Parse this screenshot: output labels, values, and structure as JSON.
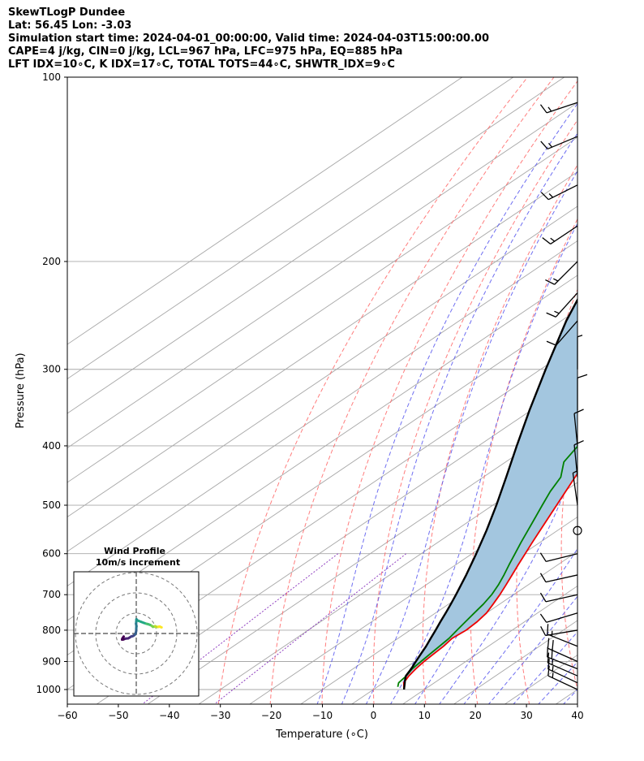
{
  "header": {
    "line1": "SkewTLogP Dundee",
    "line2": "Lat: 56.45   Lon: -3.03",
    "line3": "Simulation start time: 2024-04-01_00:00:00, Valid time: 2024-04-03T15:00:00.00",
    "line4": "CAPE=4 j/kg, CIN=0 j/kg, LCL=967 hPa, LFC=975 hPa, EQ=885 hPa",
    "line5": "LFT IDX=10∘C, K IDX=17∘C, TOTAL TOTS=44∘C, SHWTR_IDX=9∘C"
  },
  "chart_data": {
    "type": "line",
    "title": "SkewTLogP Dundee",
    "xlabel": "Temperature (∘C)",
    "ylabel": "Pressure (hPa)",
    "xlim": [
      -60,
      40
    ],
    "ylim": [
      1050,
      100
    ],
    "y_scale": "log",
    "grid": true,
    "x_ticks": [
      -60,
      -50,
      -40,
      -30,
      -20,
      -10,
      0,
      10,
      20,
      30,
      40
    ],
    "x_tick_labels": [
      "−60",
      "−50",
      "−40",
      "−30",
      "−20",
      "−10",
      "0",
      "10",
      "20",
      "30",
      "40"
    ],
    "y_ticks": [
      1000,
      900,
      800,
      700,
      600,
      500,
      400,
      300,
      200,
      100
    ],
    "y_tick_labels": [
      "1000",
      "900",
      "800",
      "700",
      "600",
      "500",
      "400",
      "300",
      "200",
      "100"
    ],
    "series": [
      {
        "color": "#ee0000",
        "pressure": [
          1000,
          975,
          950,
          925,
          900,
          875,
          850,
          825,
          800,
          775,
          750,
          725,
          700,
          675,
          650,
          625,
          600,
          575,
          550,
          525,
          500,
          475,
          450,
          425,
          400,
          375,
          350,
          325,
          310,
          300,
          290,
          280,
          270,
          260,
          250,
          240,
          230,
          220,
          210,
          200,
          190,
          180,
          170,
          160,
          150,
          140,
          130,
          125,
          120,
          115,
          110,
          105,
          100
        ],
        "temperature": [
          6.0,
          4.0,
          3.0,
          2.3,
          1.8,
          1.5,
          1.2,
          0.6,
          1.0,
          0.7,
          0.0,
          -1.3,
          -2.7,
          -4.3,
          -6.0,
          -7.8,
          -9.6,
          -11.5,
          -13.4,
          -15.4,
          -17.5,
          -19.7,
          -22.0,
          -24.3,
          -26.9,
          -30.0,
          -33.6,
          -37.4,
          -40.2,
          -41.5,
          -41.2,
          -40.6,
          -39.9,
          -39.6,
          -39.2,
          -38.6,
          -38.0,
          -37.5,
          -37.0,
          -36.8,
          -37.4,
          -38.7,
          -40.1,
          -41.7,
          -42.5,
          -44.3,
          -45.9,
          -46.2,
          -47.0,
          -49.8,
          -51.6,
          -52.6,
          -53.1
        ]
      },
      {
        "color": "#008000",
        "pressure": [
          990,
          975,
          950,
          925,
          900,
          875,
          850,
          825,
          800,
          775,
          750,
          725,
          700,
          675,
          650,
          625,
          600,
          575,
          550,
          525,
          500,
          475,
          450,
          425,
          400,
          375,
          350,
          325,
          310,
          300,
          290,
          280,
          270,
          260,
          250,
          240,
          230,
          220,
          210,
          200,
          190,
          180,
          170,
          160,
          150,
          140,
          130,
          120,
          110,
          100
        ],
        "temperature": [
          4.0,
          3.0,
          2.5,
          1.6,
          1.2,
          0.8,
          0.4,
          0.0,
          -0.8,
          -1.6,
          -2.4,
          -3.2,
          -4.3,
          -5.8,
          -7.6,
          -9.6,
          -11.6,
          -13.7,
          -15.8,
          -18.0,
          -20.3,
          -22.7,
          -24.8,
          -28.6,
          -30.5,
          -35.0,
          -38.5,
          -43.8,
          -46.2,
          -48.5,
          -49.0,
          -49.3,
          -50.5,
          -52.5,
          -55.0,
          -59.0,
          -61.0,
          -64.5,
          -67.0,
          -69.8,
          -70.5,
          -70.0,
          -69.0,
          -68.0,
          -67.0,
          -65.5,
          -64.0,
          -62.0,
          -59.5,
          -57.0
        ]
      },
      {
        "color": "#000000",
        "pressure": [
          1000,
          975,
          967,
          950,
          925,
          900,
          875,
          850,
          825,
          800,
          775,
          750,
          725,
          700,
          650,
          600,
          550,
          500,
          450,
          400,
          350,
          300,
          250,
          200,
          175,
          150,
          125,
          100
        ],
        "temperature": [
          6.0,
          4.2,
          3.6,
          2.4,
          1.4,
          0.2,
          -1.0,
          -2.2,
          -3.6,
          -5.0,
          -6.5,
          -8.0,
          -9.6,
          -11.3,
          -15.0,
          -19.2,
          -23.9,
          -29.3,
          -35.5,
          -42.5,
          -50.3,
          -59.0,
          -69.0,
          -80.0,
          -86.5,
          -93.5,
          -101.0,
          -109.5
        ]
      }
    ],
    "wind_barbs": {
      "pressure": [
        1000,
        975,
        950,
        925,
        900,
        850,
        800,
        750,
        700,
        650,
        600,
        550,
        500,
        450,
        400,
        350,
        300,
        250,
        225,
        200,
        175,
        150,
        125,
        110
      ],
      "u_knots": [
        -15,
        -15,
        -16,
        -18,
        -18,
        -15,
        -12,
        -10,
        -9,
        -9,
        -8,
        -1,
        -1,
        -1,
        -1,
        0,
        0,
        -7,
        -9,
        -10,
        -12,
        -12,
        -12,
        -12
      ],
      "v_knots": [
        7,
        7,
        7,
        7,
        8,
        6,
        -2,
        -3,
        -2,
        -2,
        -2,
        0,
        7,
        10,
        10,
        10,
        6,
        -8,
        -10,
        -10,
        -8,
        -6,
        -5,
        -4
      ]
    }
  },
  "hodograph": {
    "title": "Wind Profile",
    "subtitle": "10m/s increment",
    "rings_ms": [
      10,
      20,
      30
    ],
    "u_ms": [
      -6.2,
      -6.8,
      -7.0,
      -6.3,
      -5.2,
      -4.0,
      -3.3,
      -2.5,
      -1.8,
      -1.2,
      -0.6,
      -0.2,
      0.0,
      0.0,
      0.1,
      -0.1,
      0.0,
      0.1,
      0.5,
      1.2,
      2.5,
      3.8,
      5.0,
      6.1,
      6.9,
      7.6,
      8.2,
      8.8,
      9.3,
      9.8,
      10.4,
      11.0,
      11.6,
      12.0,
      12.5
    ],
    "v_ms": [
      -1.5,
      -2.4,
      -3.0,
      -2.9,
      -2.5,
      -2.4,
      -2.0,
      -1.5,
      -1.3,
      -1.0,
      -0.5,
      0.4,
      1.5,
      2.5,
      3.6,
      4.8,
      5.8,
      7.0,
      6.5,
      6.2,
      5.7,
      5.2,
      4.8,
      4.5,
      4.2,
      3.8,
      3.3,
      3.4,
      3.6,
      3.3,
      3.2,
      3.3,
      3.4,
      3.2,
      3.0
    ]
  },
  "colors": {
    "temperature": "#ee0000",
    "dewpoint": "#008000",
    "parcel": "#000000",
    "cape_fill": "#a3c6df",
    "dry_adiabats": "#ff6666",
    "moist_adiabats": "#5555ee",
    "mixing_ratio": "#9040c0",
    "isotherms": "#a8a8a8"
  }
}
